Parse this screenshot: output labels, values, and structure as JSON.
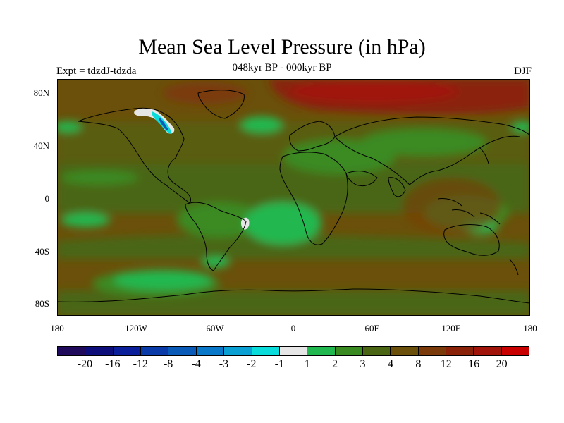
{
  "title": "Mean Sea Level Pressure (in hPa)",
  "subtitle": "048kyr BP - 000kyr BP",
  "experiment_label": "Expt = tdzdJ-tdzda",
  "season_label": "DJF",
  "map": {
    "projection": "cylindrical-equidistant",
    "lat_range": [
      -90,
      90
    ],
    "lon_range": [
      -180,
      180
    ],
    "lat_ticks": [
      "80N",
      "40N",
      "0",
      "40S",
      "80S"
    ],
    "lon_ticks": [
      "180",
      "120W",
      "60W",
      "0",
      "60E",
      "120E",
      "180"
    ]
  },
  "colorbar": {
    "colors": [
      "#1f0a5c",
      "#0e0e7a",
      "#0a1f99",
      "#0a3ba8",
      "#0a5ab8",
      "#0a78c8",
      "#0aa0d4",
      "#0adcdc",
      "#e6e6e6",
      "#22b850",
      "#3a8a22",
      "#4a6614",
      "#6a500a",
      "#7a3a0a",
      "#8a220a",
      "#a0140a",
      "#c80000"
    ],
    "labels": [
      "-20",
      "-16",
      "-12",
      "-8",
      "-4",
      "-3",
      "-2",
      "-1",
      "1",
      "2",
      "3",
      "4",
      "8",
      "12",
      "16",
      "20"
    ]
  }
}
